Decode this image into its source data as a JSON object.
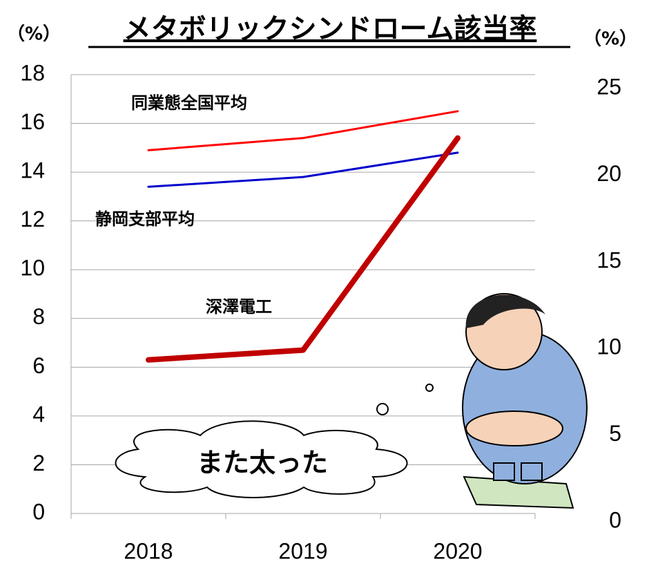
{
  "chart_data": {
    "type": "line",
    "title": "メタボリックシンドローム該当率",
    "y_unit": "（%）",
    "y2_unit": "（%）",
    "annotation": "また太った",
    "categories": [
      "2018",
      "2019",
      "2020"
    ],
    "ylim": [
      0,
      18
    ],
    "yticks": [
      0,
      2,
      4,
      6,
      8,
      10,
      12,
      14,
      16,
      18
    ],
    "y2lim": [
      0,
      25
    ],
    "y2ticks": [
      0,
      5,
      10,
      15,
      20,
      25
    ],
    "grid": true,
    "series": [
      {
        "name": "同業態全国平均",
        "color": "#ff0000",
        "line_width": 3,
        "values": [
          14.9,
          15.4,
          16.5
        ]
      },
      {
        "name": "静岡支部平均",
        "color": "#0000cc",
        "line_width": 3,
        "values": [
          13.4,
          13.8,
          14.8
        ]
      },
      {
        "name": "深澤電工",
        "color": "#c00000",
        "line_width": 8,
        "values": [
          6.3,
          6.7,
          15.4
        ]
      }
    ]
  }
}
